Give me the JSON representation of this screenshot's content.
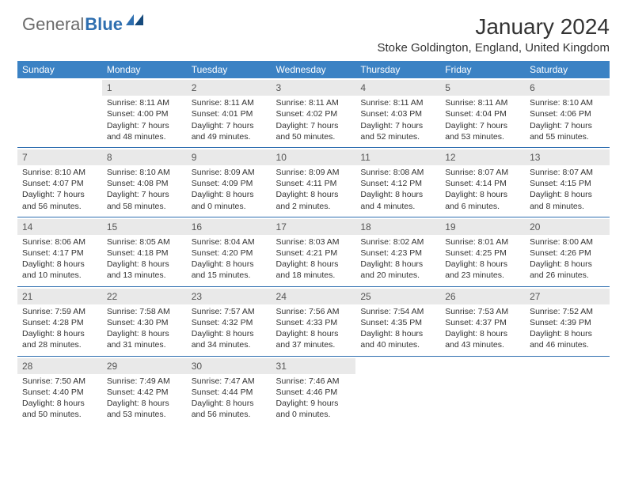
{
  "logo": {
    "part1": "General",
    "part2": "Blue"
  },
  "title": "January 2024",
  "subtitle": "Stoke Goldington, England, United Kingdom",
  "colors": {
    "header_bg": "#3b82c4",
    "header_text": "#ffffff",
    "row_divider": "#2f6fb0",
    "daynum_bg": "#e9e9e9",
    "body_text": "#333333",
    "logo_gray": "#6b6b6b",
    "logo_blue": "#2f6fb0"
  },
  "calendar": {
    "day_headers": [
      "Sunday",
      "Monday",
      "Tuesday",
      "Wednesday",
      "Thursday",
      "Friday",
      "Saturday"
    ],
    "weeks": [
      [
        {
          "day": "",
          "sunrise": "",
          "sunset": "",
          "daylight1": "",
          "daylight2": ""
        },
        {
          "day": "1",
          "sunrise": "Sunrise: 8:11 AM",
          "sunset": "Sunset: 4:00 PM",
          "daylight1": "Daylight: 7 hours",
          "daylight2": "and 48 minutes."
        },
        {
          "day": "2",
          "sunrise": "Sunrise: 8:11 AM",
          "sunset": "Sunset: 4:01 PM",
          "daylight1": "Daylight: 7 hours",
          "daylight2": "and 49 minutes."
        },
        {
          "day": "3",
          "sunrise": "Sunrise: 8:11 AM",
          "sunset": "Sunset: 4:02 PM",
          "daylight1": "Daylight: 7 hours",
          "daylight2": "and 50 minutes."
        },
        {
          "day": "4",
          "sunrise": "Sunrise: 8:11 AM",
          "sunset": "Sunset: 4:03 PM",
          "daylight1": "Daylight: 7 hours",
          "daylight2": "and 52 minutes."
        },
        {
          "day": "5",
          "sunrise": "Sunrise: 8:11 AM",
          "sunset": "Sunset: 4:04 PM",
          "daylight1": "Daylight: 7 hours",
          "daylight2": "and 53 minutes."
        },
        {
          "day": "6",
          "sunrise": "Sunrise: 8:10 AM",
          "sunset": "Sunset: 4:06 PM",
          "daylight1": "Daylight: 7 hours",
          "daylight2": "and 55 minutes."
        }
      ],
      [
        {
          "day": "7",
          "sunrise": "Sunrise: 8:10 AM",
          "sunset": "Sunset: 4:07 PM",
          "daylight1": "Daylight: 7 hours",
          "daylight2": "and 56 minutes."
        },
        {
          "day": "8",
          "sunrise": "Sunrise: 8:10 AM",
          "sunset": "Sunset: 4:08 PM",
          "daylight1": "Daylight: 7 hours",
          "daylight2": "and 58 minutes."
        },
        {
          "day": "9",
          "sunrise": "Sunrise: 8:09 AM",
          "sunset": "Sunset: 4:09 PM",
          "daylight1": "Daylight: 8 hours",
          "daylight2": "and 0 minutes."
        },
        {
          "day": "10",
          "sunrise": "Sunrise: 8:09 AM",
          "sunset": "Sunset: 4:11 PM",
          "daylight1": "Daylight: 8 hours",
          "daylight2": "and 2 minutes."
        },
        {
          "day": "11",
          "sunrise": "Sunrise: 8:08 AM",
          "sunset": "Sunset: 4:12 PM",
          "daylight1": "Daylight: 8 hours",
          "daylight2": "and 4 minutes."
        },
        {
          "day": "12",
          "sunrise": "Sunrise: 8:07 AM",
          "sunset": "Sunset: 4:14 PM",
          "daylight1": "Daylight: 8 hours",
          "daylight2": "and 6 minutes."
        },
        {
          "day": "13",
          "sunrise": "Sunrise: 8:07 AM",
          "sunset": "Sunset: 4:15 PM",
          "daylight1": "Daylight: 8 hours",
          "daylight2": "and 8 minutes."
        }
      ],
      [
        {
          "day": "14",
          "sunrise": "Sunrise: 8:06 AM",
          "sunset": "Sunset: 4:17 PM",
          "daylight1": "Daylight: 8 hours",
          "daylight2": "and 10 minutes."
        },
        {
          "day": "15",
          "sunrise": "Sunrise: 8:05 AM",
          "sunset": "Sunset: 4:18 PM",
          "daylight1": "Daylight: 8 hours",
          "daylight2": "and 13 minutes."
        },
        {
          "day": "16",
          "sunrise": "Sunrise: 8:04 AM",
          "sunset": "Sunset: 4:20 PM",
          "daylight1": "Daylight: 8 hours",
          "daylight2": "and 15 minutes."
        },
        {
          "day": "17",
          "sunrise": "Sunrise: 8:03 AM",
          "sunset": "Sunset: 4:21 PM",
          "daylight1": "Daylight: 8 hours",
          "daylight2": "and 18 minutes."
        },
        {
          "day": "18",
          "sunrise": "Sunrise: 8:02 AM",
          "sunset": "Sunset: 4:23 PM",
          "daylight1": "Daylight: 8 hours",
          "daylight2": "and 20 minutes."
        },
        {
          "day": "19",
          "sunrise": "Sunrise: 8:01 AM",
          "sunset": "Sunset: 4:25 PM",
          "daylight1": "Daylight: 8 hours",
          "daylight2": "and 23 minutes."
        },
        {
          "day": "20",
          "sunrise": "Sunrise: 8:00 AM",
          "sunset": "Sunset: 4:26 PM",
          "daylight1": "Daylight: 8 hours",
          "daylight2": "and 26 minutes."
        }
      ],
      [
        {
          "day": "21",
          "sunrise": "Sunrise: 7:59 AM",
          "sunset": "Sunset: 4:28 PM",
          "daylight1": "Daylight: 8 hours",
          "daylight2": "and 28 minutes."
        },
        {
          "day": "22",
          "sunrise": "Sunrise: 7:58 AM",
          "sunset": "Sunset: 4:30 PM",
          "daylight1": "Daylight: 8 hours",
          "daylight2": "and 31 minutes."
        },
        {
          "day": "23",
          "sunrise": "Sunrise: 7:57 AM",
          "sunset": "Sunset: 4:32 PM",
          "daylight1": "Daylight: 8 hours",
          "daylight2": "and 34 minutes."
        },
        {
          "day": "24",
          "sunrise": "Sunrise: 7:56 AM",
          "sunset": "Sunset: 4:33 PM",
          "daylight1": "Daylight: 8 hours",
          "daylight2": "and 37 minutes."
        },
        {
          "day": "25",
          "sunrise": "Sunrise: 7:54 AM",
          "sunset": "Sunset: 4:35 PM",
          "daylight1": "Daylight: 8 hours",
          "daylight2": "and 40 minutes."
        },
        {
          "day": "26",
          "sunrise": "Sunrise: 7:53 AM",
          "sunset": "Sunset: 4:37 PM",
          "daylight1": "Daylight: 8 hours",
          "daylight2": "and 43 minutes."
        },
        {
          "day": "27",
          "sunrise": "Sunrise: 7:52 AM",
          "sunset": "Sunset: 4:39 PM",
          "daylight1": "Daylight: 8 hours",
          "daylight2": "and 46 minutes."
        }
      ],
      [
        {
          "day": "28",
          "sunrise": "Sunrise: 7:50 AM",
          "sunset": "Sunset: 4:40 PM",
          "daylight1": "Daylight: 8 hours",
          "daylight2": "and 50 minutes."
        },
        {
          "day": "29",
          "sunrise": "Sunrise: 7:49 AM",
          "sunset": "Sunset: 4:42 PM",
          "daylight1": "Daylight: 8 hours",
          "daylight2": "and 53 minutes."
        },
        {
          "day": "30",
          "sunrise": "Sunrise: 7:47 AM",
          "sunset": "Sunset: 4:44 PM",
          "daylight1": "Daylight: 8 hours",
          "daylight2": "and 56 minutes."
        },
        {
          "day": "31",
          "sunrise": "Sunrise: 7:46 AM",
          "sunset": "Sunset: 4:46 PM",
          "daylight1": "Daylight: 9 hours",
          "daylight2": "and 0 minutes."
        },
        {
          "day": "",
          "sunrise": "",
          "sunset": "",
          "daylight1": "",
          "daylight2": ""
        },
        {
          "day": "",
          "sunrise": "",
          "sunset": "",
          "daylight1": "",
          "daylight2": ""
        },
        {
          "day": "",
          "sunrise": "",
          "sunset": "",
          "daylight1": "",
          "daylight2": ""
        }
      ]
    ]
  }
}
